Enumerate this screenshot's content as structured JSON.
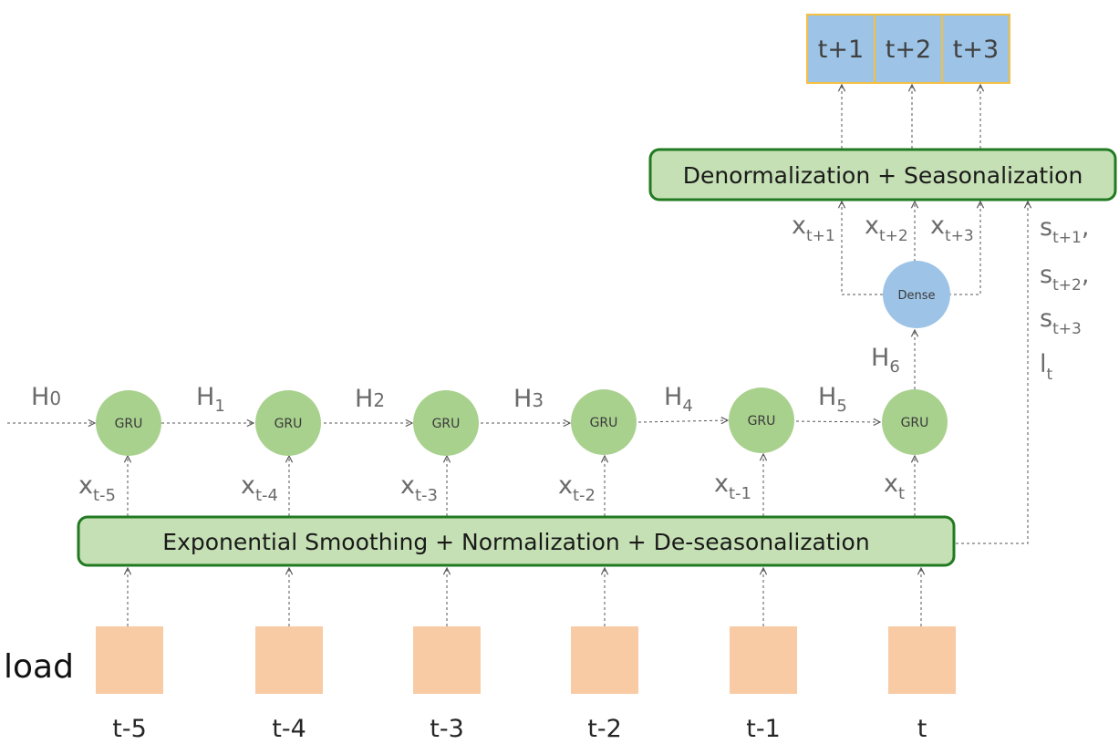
{
  "load_label": "load",
  "time_steps": [
    "t-5",
    "t-4",
    "t-3",
    "t-2",
    "t-1",
    "t"
  ],
  "gru_label": "GRU",
  "dense_label": "Dense",
  "hidden": [
    {
      "main": "H",
      "sub": "0"
    },
    {
      "main": "H",
      "sub": "1"
    },
    {
      "main": "H",
      "sub": "2"
    },
    {
      "main": "H",
      "sub": "3"
    },
    {
      "main": "H",
      "sub": "4"
    },
    {
      "main": "H",
      "sub": "5"
    },
    {
      "main": "H",
      "sub": "6"
    }
  ],
  "inputs": [
    {
      "main": "x",
      "sub": "t-5"
    },
    {
      "main": "x",
      "sub": "t-4"
    },
    {
      "main": "x",
      "sub": "t-3"
    },
    {
      "main": "x",
      "sub": "t-2"
    },
    {
      "main": "x",
      "sub": "t-1"
    },
    {
      "main": "x",
      "sub": "t"
    }
  ],
  "smoothing_block": "Exponential Smoothing + Normalization + De-seasonalization",
  "denorm_block": "Denormalization + Seasonalization",
  "dense_outputs": [
    {
      "main": "x",
      "sub": "t+1"
    },
    {
      "main": "x",
      "sub": "t+2"
    },
    {
      "main": "x",
      "sub": "t+3"
    }
  ],
  "side_labels": [
    {
      "main": "s",
      "sub": "t+1",
      "suffix": ","
    },
    {
      "main": "s",
      "sub": "t+2",
      "suffix": ","
    },
    {
      "main": "s",
      "sub": "t+3",
      "suffix": ""
    },
    {
      "main": "l",
      "sub": "t",
      "suffix": ""
    }
  ],
  "outputs": [
    "t+1",
    "t+2",
    "t+3"
  ],
  "colors": {
    "green_fill": "#c5e0b4",
    "green_border": "#217a21",
    "gru_fill": "#a9d18e",
    "dense_fill": "#9dc3e6",
    "load_fill": "#f8cba5",
    "output_fill": "#9dc3e6",
    "output_border": "#f4c042",
    "arrow": "#555555"
  }
}
